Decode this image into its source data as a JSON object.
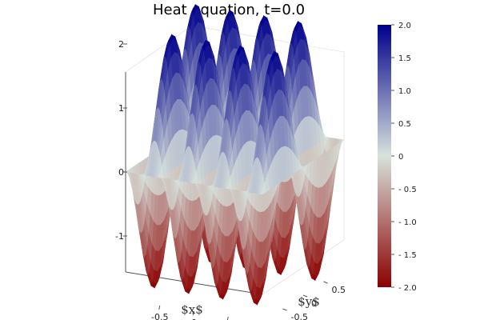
{
  "chart_data": {
    "type": "surface",
    "title": "Heat equation, t=0.0",
    "xlabel": "$x$",
    "ylabel": "$y$",
    "zlabel": "",
    "xlim": [
      -1,
      1
    ],
    "ylim": [
      -1,
      1
    ],
    "zlim": [
      -2,
      2
    ],
    "x_ticks": [
      "-0.5",
      "0",
      "0.5"
    ],
    "y_ticks": [
      "-0.5",
      "0",
      "0.5"
    ],
    "z_ticks": [
      "2",
      "1",
      "0",
      "-1"
    ],
    "function": "z = 2*sin(4*pi*x)*sin(pi*y)",
    "colormap": [
      "#8B0000",
      "#D8E2DC",
      "#00008B"
    ],
    "colorbar": {
      "range": [
        -2,
        2
      ],
      "ticks": [
        "2.0",
        "1.5",
        "1.0",
        "0.5",
        "0",
        "- 0.5",
        "- 1.0",
        "- 1.5",
        "- 2.0"
      ]
    },
    "grid": true,
    "legend": "none"
  }
}
